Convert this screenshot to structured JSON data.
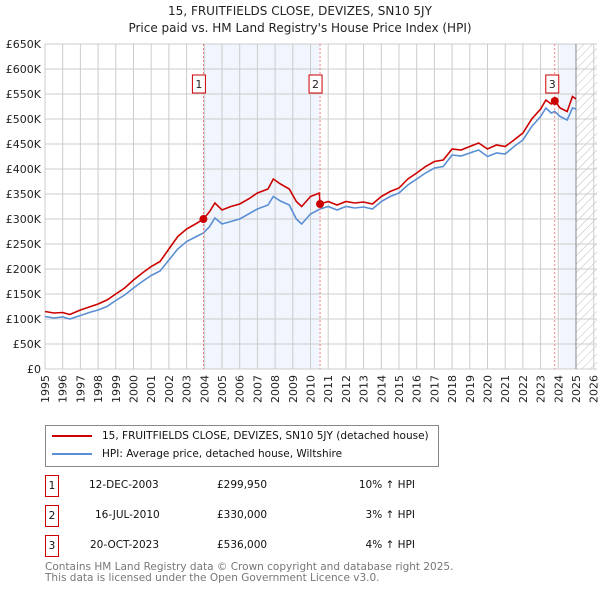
{
  "chart_data": {
    "type": "line",
    "title": "15, FRUITFIELDS CLOSE, DEVIZES, SN10 5JY",
    "subtitle": "Price paid vs. HM Land Registry's House Price Index (HPI)",
    "xlim": [
      1995,
      2026
    ],
    "ylim": [
      0,
      650000
    ],
    "x_ticks": [
      "1995",
      "1996",
      "1997",
      "1998",
      "1999",
      "2000",
      "2001",
      "2002",
      "2003",
      "2004",
      "2005",
      "2006",
      "2007",
      "2008",
      "2009",
      "2010",
      "2011",
      "2012",
      "2013",
      "2014",
      "2015",
      "2016",
      "2017",
      "2018",
      "2019",
      "2020",
      "2021",
      "2022",
      "2023",
      "2024",
      "2025",
      "2026"
    ],
    "y_ticks": [
      {
        "v": 0,
        "label": "£0"
      },
      {
        "v": 50000,
        "label": "£50K"
      },
      {
        "v": 100000,
        "label": "£100K"
      },
      {
        "v": 150000,
        "label": "£150K"
      },
      {
        "v": 200000,
        "label": "£200K"
      },
      {
        "v": 250000,
        "label": "£250K"
      },
      {
        "v": 300000,
        "label": "£300K"
      },
      {
        "v": 350000,
        "label": "£350K"
      },
      {
        "v": 400000,
        "label": "£400K"
      },
      {
        "v": 450000,
        "label": "£450K"
      },
      {
        "v": 500000,
        "label": "£500K"
      },
      {
        "v": 550000,
        "label": "£550K"
      },
      {
        "v": 600000,
        "label": "£600K"
      },
      {
        "v": 650000,
        "label": "£650K"
      }
    ],
    "grid": true,
    "series": [
      {
        "name": "15, FRUITFIELDS CLOSE, DEVIZES, SN10 5JY (detached house)",
        "color": "#cc0000",
        "points": [
          [
            1995,
            115000
          ],
          [
            1995.5,
            112000
          ],
          [
            1996,
            113000
          ],
          [
            1996.4,
            109000
          ],
          [
            1997,
            118000
          ],
          [
            1997.5,
            124000
          ],
          [
            1998,
            130000
          ],
          [
            1998.5,
            138000
          ],
          [
            1999,
            150000
          ],
          [
            1999.5,
            162000
          ],
          [
            2000,
            178000
          ],
          [
            2000.5,
            192000
          ],
          [
            2001,
            205000
          ],
          [
            2001.5,
            215000
          ],
          [
            2002,
            240000
          ],
          [
            2002.5,
            265000
          ],
          [
            2003,
            280000
          ],
          [
            2003.5,
            290000
          ],
          [
            2003.95,
            299950
          ],
          [
            2004.3,
            315000
          ],
          [
            2004.6,
            332000
          ],
          [
            2005,
            318000
          ],
          [
            2005.5,
            325000
          ],
          [
            2006,
            330000
          ],
          [
            2006.5,
            340000
          ],
          [
            2007,
            352000
          ],
          [
            2007.6,
            360000
          ],
          [
            2007.9,
            380000
          ],
          [
            2008.3,
            370000
          ],
          [
            2008.8,
            360000
          ],
          [
            2009.2,
            335000
          ],
          [
            2009.5,
            325000
          ],
          [
            2010,
            345000
          ],
          [
            2010.5,
            352000
          ],
          [
            2010.54,
            330000
          ],
          [
            2011,
            335000
          ],
          [
            2011.5,
            328000
          ],
          [
            2012,
            335000
          ],
          [
            2012.5,
            332000
          ],
          [
            2013,
            334000
          ],
          [
            2013.5,
            330000
          ],
          [
            2014,
            345000
          ],
          [
            2014.5,
            355000
          ],
          [
            2015,
            362000
          ],
          [
            2015.5,
            380000
          ],
          [
            2016,
            392000
          ],
          [
            2016.5,
            405000
          ],
          [
            2017,
            415000
          ],
          [
            2017.5,
            418000
          ],
          [
            2018,
            440000
          ],
          [
            2018.5,
            438000
          ],
          [
            2019,
            445000
          ],
          [
            2019.5,
            452000
          ],
          [
            2020,
            440000
          ],
          [
            2020.5,
            448000
          ],
          [
            2021,
            445000
          ],
          [
            2021.5,
            458000
          ],
          [
            2022,
            472000
          ],
          [
            2022.5,
            500000
          ],
          [
            2023,
            520000
          ],
          [
            2023.3,
            538000
          ],
          [
            2023.6,
            530000
          ],
          [
            2023.8,
            536000
          ],
          [
            2024.1,
            522000
          ],
          [
            2024.5,
            515000
          ],
          [
            2024.8,
            545000
          ],
          [
            2025,
            540000
          ]
        ]
      },
      {
        "name": "HPI: Average price, detached house, Wiltshire",
        "color": "#5b8fd4",
        "points": [
          [
            1995,
            105000
          ],
          [
            1995.5,
            102000
          ],
          [
            1996,
            104000
          ],
          [
            1996.4,
            100000
          ],
          [
            1997,
            107000
          ],
          [
            1997.5,
            113000
          ],
          [
            1998,
            118000
          ],
          [
            1998.5,
            125000
          ],
          [
            1999,
            137000
          ],
          [
            1999.5,
            148000
          ],
          [
            2000,
            162000
          ],
          [
            2000.5,
            175000
          ],
          [
            2001,
            187000
          ],
          [
            2001.5,
            196000
          ],
          [
            2002,
            218000
          ],
          [
            2002.5,
            240000
          ],
          [
            2003,
            255000
          ],
          [
            2003.5,
            264000
          ],
          [
            2003.95,
            272000
          ],
          [
            2004.3,
            285000
          ],
          [
            2004.6,
            302000
          ],
          [
            2005,
            290000
          ],
          [
            2005.5,
            295000
          ],
          [
            2006,
            300000
          ],
          [
            2006.5,
            310000
          ],
          [
            2007,
            320000
          ],
          [
            2007.6,
            328000
          ],
          [
            2007.9,
            345000
          ],
          [
            2008.3,
            336000
          ],
          [
            2008.8,
            328000
          ],
          [
            2009.2,
            300000
          ],
          [
            2009.5,
            290000
          ],
          [
            2010,
            310000
          ],
          [
            2010.54,
            320000
          ],
          [
            2011,
            325000
          ],
          [
            2011.5,
            318000
          ],
          [
            2012,
            325000
          ],
          [
            2012.5,
            322000
          ],
          [
            2013,
            324000
          ],
          [
            2013.5,
            320000
          ],
          [
            2014,
            335000
          ],
          [
            2014.5,
            345000
          ],
          [
            2015,
            352000
          ],
          [
            2015.5,
            368000
          ],
          [
            2016,
            380000
          ],
          [
            2016.5,
            392000
          ],
          [
            2017,
            402000
          ],
          [
            2017.5,
            405000
          ],
          [
            2018,
            428000
          ],
          [
            2018.5,
            426000
          ],
          [
            2019,
            432000
          ],
          [
            2019.5,
            438000
          ],
          [
            2020,
            425000
          ],
          [
            2020.5,
            432000
          ],
          [
            2021,
            430000
          ],
          [
            2021.5,
            445000
          ],
          [
            2022,
            458000
          ],
          [
            2022.5,
            485000
          ],
          [
            2023,
            505000
          ],
          [
            2023.3,
            522000
          ],
          [
            2023.6,
            512000
          ],
          [
            2023.8,
            515000
          ],
          [
            2024.1,
            505000
          ],
          [
            2024.5,
            498000
          ],
          [
            2024.8,
            522000
          ],
          [
            2025,
            520000
          ]
        ]
      }
    ],
    "sales": [
      {
        "id": "1",
        "x": 2003.95,
        "y": 299950,
        "date": "12-DEC-2003",
        "price": "£299,950",
        "hpi": "10% ↑ HPI"
      },
      {
        "id": "2",
        "x": 2010.54,
        "y": 330000,
        "date": "16-JUL-2010",
        "price": "£330,000",
        "hpi": "3% ↑ HPI"
      },
      {
        "id": "3",
        "x": 2023.8,
        "y": 536000,
        "date": "20-OCT-2023",
        "price": "£536,000",
        "hpi": "4% ↑ HPI"
      }
    ],
    "shaded_ranges": [
      [
        2003.95,
        2010.54
      ],
      [
        2024.1,
        2025
      ]
    ],
    "forecast_hatch_from": 2025,
    "legend_position": "below"
  },
  "footer": {
    "line1": "Contains HM Land Registry data © Crown copyright and database right 2025.",
    "line2": "This data is licensed under the Open Government Licence v3.0."
  }
}
